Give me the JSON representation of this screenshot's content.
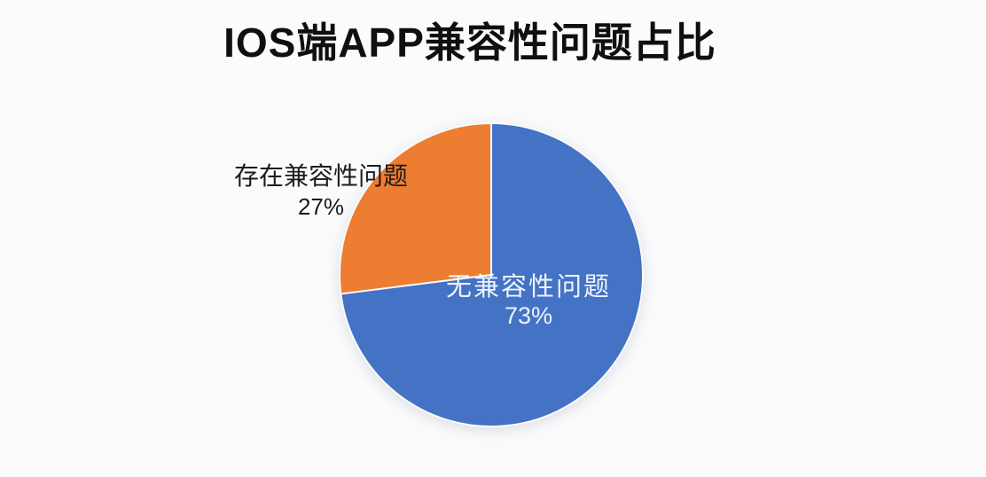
{
  "chart_data": {
    "type": "pie",
    "title": "IOS端APP兼容性问题占比",
    "slices": [
      {
        "name": "无兼容性问题",
        "value": 73,
        "percent_label": "73%",
        "color": "#4472C4",
        "label_placement": "inside"
      },
      {
        "name": "存在兼容性问题",
        "value": 27,
        "percent_label": "27%",
        "color": "#ED7D31",
        "label_placement": "outside-left"
      }
    ],
    "start_angle_deg": 0,
    "direction": "clockwise",
    "legend": "none",
    "background": "#fbfbfc",
    "slice_separator_color": "#fafafa",
    "outside_label_color": "#1c1c1e",
    "inside_label_color": "#eef2fb",
    "title_color": "#0f0f10"
  }
}
